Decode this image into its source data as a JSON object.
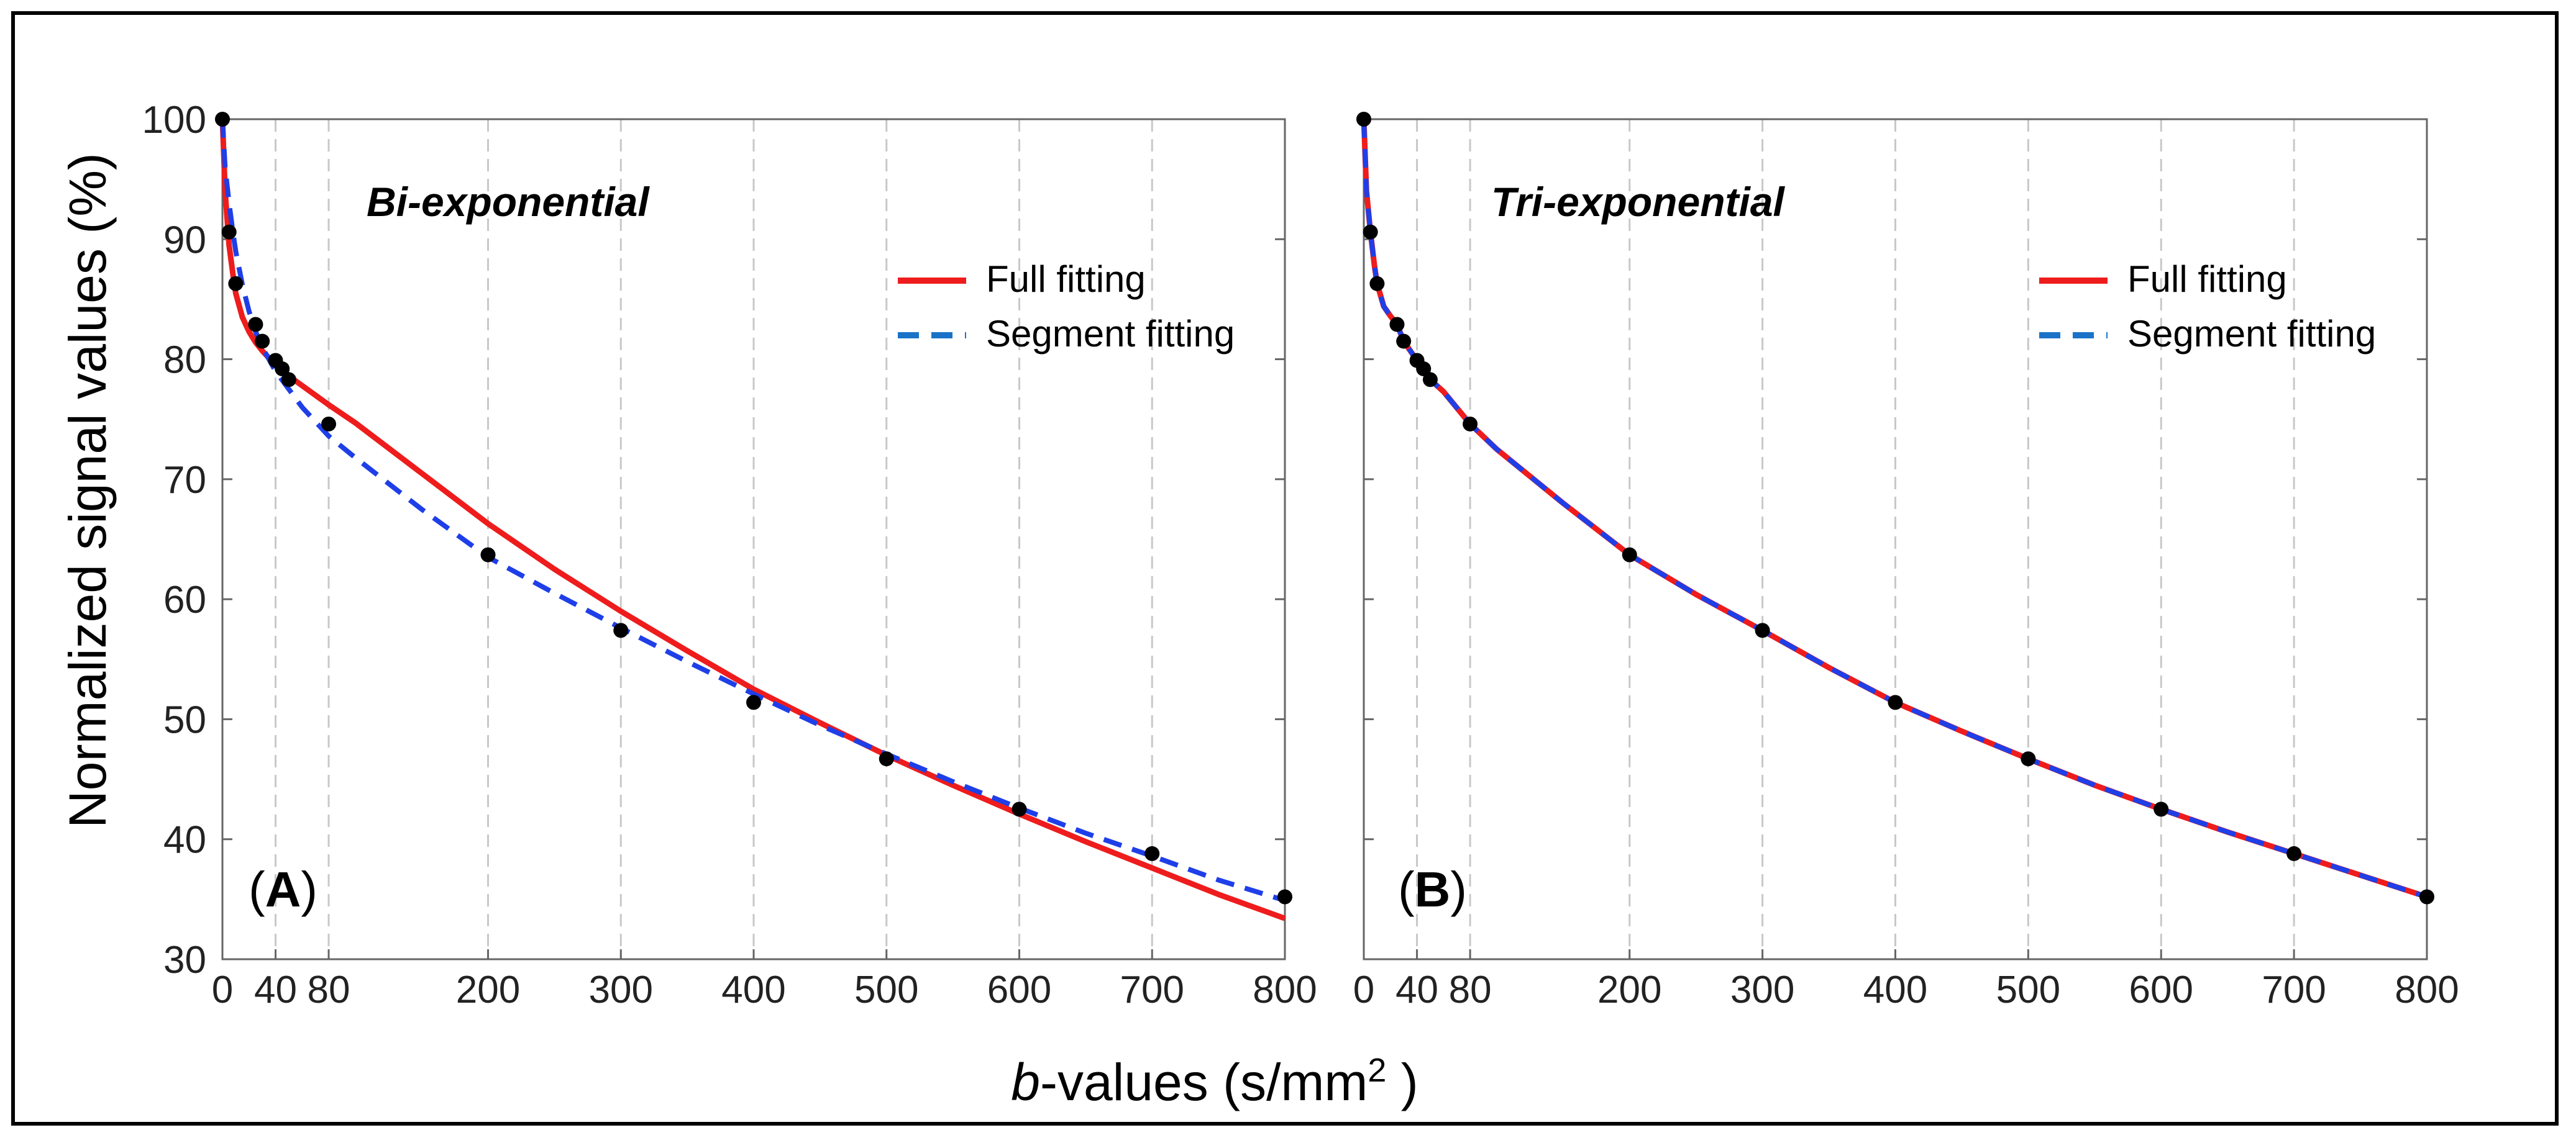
{
  "figure": {
    "ylabel": "Normalized signal values (%)",
    "xlabel_italic": "b",
    "xlabel_rest": "-values (s/mm",
    "xlabel_sup": "2",
    "xlabel_end": " )"
  },
  "chart_data": [
    {
      "type": "line",
      "panel_label_letter": "A",
      "panel_label_open": "(",
      "panel_label_close": ")",
      "title": "Bi-exponential",
      "xlim": [
        0,
        800
      ],
      "ylim": [
        30,
        100
      ],
      "x_ticks": [
        0,
        40,
        80,
        200,
        300,
        400,
        500,
        600,
        700,
        800
      ],
      "x_tick_labels": [
        "0",
        "40",
        "80",
        "200",
        "300",
        "400",
        "500",
        "600",
        "700",
        "800"
      ],
      "y_ticks": [
        30,
        40,
        50,
        60,
        70,
        80,
        90,
        100
      ],
      "grid": "vertical dashed",
      "legend_placement": "top-right",
      "points": {
        "x": [
          0,
          5,
          10,
          25,
          30,
          40,
          45,
          50,
          80,
          200,
          300,
          400,
          500,
          600,
          700,
          800
        ],
        "y": [
          100,
          90.6,
          86.3,
          82.9,
          81.5,
          79.9,
          79.2,
          78.3,
          74.6,
          63.7,
          57.4,
          51.4,
          46.7,
          42.5,
          38.8,
          35.2
        ]
      },
      "series": [
        {
          "name": "Full fitting",
          "color": "#ee1c1c",
          "style": "solid",
          "x": [
            0,
            2,
            5,
            8,
            10,
            15,
            20,
            25,
            30,
            40,
            50,
            60,
            80,
            100,
            150,
            200,
            250,
            300,
            350,
            400,
            450,
            500,
            550,
            600,
            650,
            700,
            750,
            800
          ],
          "y": [
            100,
            94,
            89.5,
            87,
            85.5,
            83.5,
            82.3,
            81.4,
            80.7,
            79.5,
            78.6,
            77.8,
            76.2,
            74.7,
            70.5,
            66.3,
            62.5,
            59,
            55.7,
            52.5,
            49.7,
            47,
            44.5,
            42.1,
            39.8,
            37.6,
            35.4,
            33.4
          ]
        },
        {
          "name": "Segment fitting",
          "color": "#1e3fe8",
          "style": "dashed",
          "x": [
            0,
            2,
            5,
            8,
            10,
            15,
            20,
            25,
            30,
            40,
            50,
            60,
            80,
            100,
            150,
            200,
            250,
            300,
            350,
            400,
            450,
            500,
            550,
            600,
            650,
            700,
            750,
            800
          ],
          "y": [
            100,
            96,
            93,
            90.5,
            89,
            86.2,
            84,
            82.3,
            81,
            79,
            77.5,
            76,
            73.6,
            71.8,
            67.5,
            63.5,
            60.5,
            57.6,
            54.8,
            52.1,
            49.5,
            47.1,
            44.8,
            42.6,
            40.5,
            38.6,
            36.6,
            34.9
          ]
        }
      ]
    },
    {
      "type": "line",
      "panel_label_letter": "B",
      "panel_label_open": "(",
      "panel_label_close": ")",
      "title": "Tri-exponential",
      "xlim": [
        0,
        800
      ],
      "ylim": [
        30,
        100
      ],
      "x_ticks": [
        0,
        40,
        80,
        200,
        300,
        400,
        500,
        600,
        700,
        800
      ],
      "x_tick_labels": [
        "0",
        "40",
        "80",
        "200",
        "300",
        "400",
        "500",
        "600",
        "700",
        "800"
      ],
      "y_ticks": [
        30,
        40,
        50,
        60,
        70,
        80,
        90,
        100
      ],
      "grid": "vertical dashed",
      "legend_placement": "top-right",
      "points": {
        "x": [
          0,
          5,
          10,
          25,
          30,
          40,
          45,
          50,
          80,
          200,
          300,
          400,
          500,
          600,
          700,
          800
        ],
        "y": [
          100,
          90.6,
          86.3,
          82.9,
          81.5,
          79.9,
          79.2,
          78.3,
          74.6,
          63.7,
          57.4,
          51.4,
          46.7,
          42.5,
          38.8,
          35.2
        ]
      },
      "series": [
        {
          "name": "Full fitting",
          "color": "#ee1c1c",
          "style": "solid",
          "x": [
            0,
            2,
            5,
            8,
            10,
            15,
            20,
            25,
            30,
            40,
            45,
            50,
            60,
            80,
            100,
            150,
            200,
            250,
            300,
            350,
            400,
            450,
            500,
            550,
            600,
            650,
            700,
            750,
            800
          ],
          "y": [
            100,
            94,
            90.6,
            87.8,
            86.3,
            84.4,
            83.6,
            82.9,
            81.5,
            79.9,
            79.2,
            78.3,
            77.3,
            74.6,
            72.5,
            68,
            63.7,
            60.4,
            57.4,
            54.3,
            51.4,
            49,
            46.7,
            44.5,
            42.5,
            40.6,
            38.8,
            37,
            35.2
          ]
        },
        {
          "name": "Segment fitting",
          "color": "#1e3fe8",
          "style": "dashed",
          "x": [
            0,
            2,
            5,
            8,
            10,
            15,
            20,
            25,
            30,
            40,
            45,
            50,
            60,
            80,
            100,
            150,
            200,
            250,
            300,
            350,
            400,
            450,
            500,
            550,
            600,
            650,
            700,
            750,
            800
          ],
          "y": [
            100,
            94,
            90.6,
            87.8,
            86.3,
            84.4,
            83.6,
            82.9,
            81.5,
            79.9,
            79.2,
            78.3,
            77.3,
            74.6,
            72.5,
            68,
            63.7,
            60.4,
            57.4,
            54.3,
            51.4,
            49,
            46.7,
            44.5,
            42.5,
            40.6,
            38.8,
            37,
            35.2
          ]
        }
      ]
    }
  ]
}
